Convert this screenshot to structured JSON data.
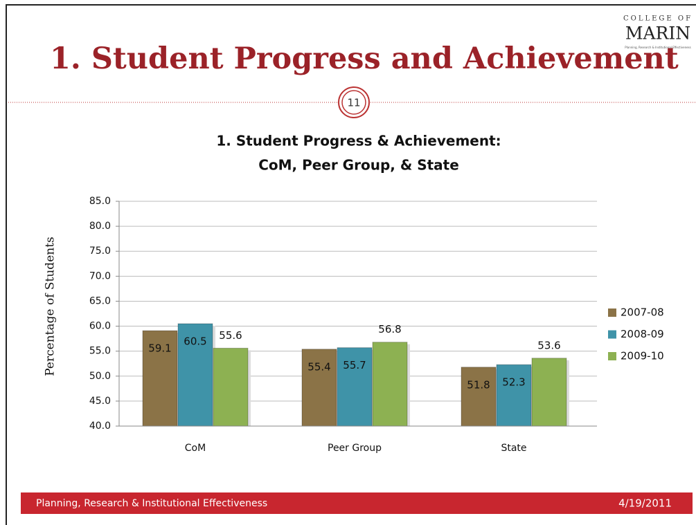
{
  "slide": {
    "title": "1. Student Progress and Achievement",
    "logo_top": "COLLEGE OF",
    "logo_main": "MARIN",
    "logo_sub": "Planning, Research & Institutional Effectiveness",
    "page_number": "11",
    "footer_left": "Planning, Research & Institutional Effectiveness",
    "footer_right": "4/19/2011"
  },
  "chart_data": {
    "type": "bar",
    "title": [
      "1. Student Progress & Achievement:",
      "CoM, Peer Group, & State"
    ],
    "y_label": "Percentage of Students",
    "categories": [
      "CoM",
      "Peer Group",
      "State"
    ],
    "series": [
      {
        "name": "2007-08",
        "color": "#8b7347",
        "values": [
          59.1,
          55.4,
          51.8
        ]
      },
      {
        "name": "2008-09",
        "color": "#3f93a8",
        "values": [
          60.5,
          55.7,
          52.3
        ]
      },
      {
        "name": "2009-10",
        "color": "#8db152",
        "values": [
          55.6,
          56.8,
          53.6
        ]
      }
    ],
    "ylim": [
      40,
      85
    ],
    "yticks": [
      {
        "value": 40,
        "label": "40.0"
      },
      {
        "value": 45,
        "label": "45.0"
      },
      {
        "value": 50,
        "label": "50.0"
      },
      {
        "value": 55,
        "label": "55.0"
      },
      {
        "value": 60,
        "label": "60.0"
      },
      {
        "value": 65,
        "label": "65.0"
      },
      {
        "value": 70,
        "label": "70.0"
      },
      {
        "value": 75,
        "label": "75.0"
      },
      {
        "value": 80,
        "label": "80.0"
      },
      {
        "value": 85,
        "label": "85.0"
      }
    ],
    "grid": true,
    "legend": "right"
  }
}
